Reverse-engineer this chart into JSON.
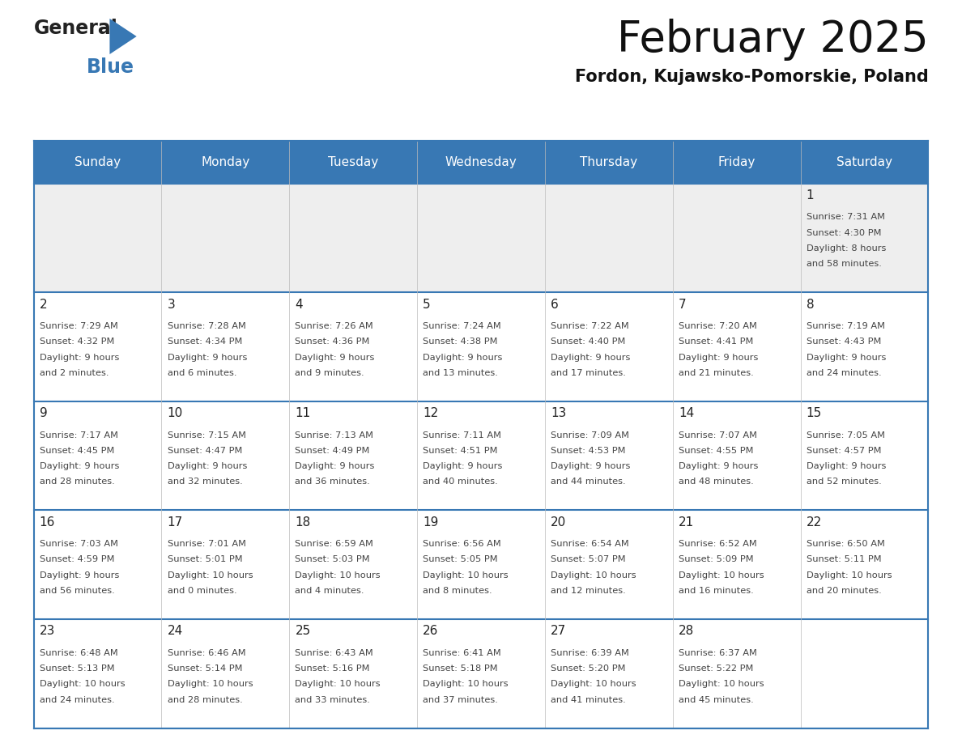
{
  "title": "February 2025",
  "subtitle": "Fordon, Kujawsko-Pomorskie, Poland",
  "header_color": "#3878b4",
  "header_text_color": "#ffffff",
  "days_of_week": [
    "Sunday",
    "Monday",
    "Tuesday",
    "Wednesday",
    "Thursday",
    "Friday",
    "Saturday"
  ],
  "cell_bg_row1": "#eeeeee",
  "cell_bg_normal": "#ffffff",
  "border_color": "#3878b4",
  "separator_color": "#3878b4",
  "text_color": "#444444",
  "day_num_color": "#222222",
  "logo_general_color": "#222222",
  "logo_blue_color": "#3878b4",
  "logo_triangle_color": "#3878b4",
  "calendar": [
    [
      null,
      null,
      null,
      null,
      null,
      null,
      {
        "day": 1,
        "sunrise": "7:31 AM",
        "sunset": "4:30 PM",
        "daylight": "8 hours",
        "daylight2": "and 58 minutes."
      }
    ],
    [
      {
        "day": 2,
        "sunrise": "7:29 AM",
        "sunset": "4:32 PM",
        "daylight": "9 hours",
        "daylight2": "and 2 minutes."
      },
      {
        "day": 3,
        "sunrise": "7:28 AM",
        "sunset": "4:34 PM",
        "daylight": "9 hours",
        "daylight2": "and 6 minutes."
      },
      {
        "day": 4,
        "sunrise": "7:26 AM",
        "sunset": "4:36 PM",
        "daylight": "9 hours",
        "daylight2": "and 9 minutes."
      },
      {
        "day": 5,
        "sunrise": "7:24 AM",
        "sunset": "4:38 PM",
        "daylight": "9 hours",
        "daylight2": "and 13 minutes."
      },
      {
        "day": 6,
        "sunrise": "7:22 AM",
        "sunset": "4:40 PM",
        "daylight": "9 hours",
        "daylight2": "and 17 minutes."
      },
      {
        "day": 7,
        "sunrise": "7:20 AM",
        "sunset": "4:41 PM",
        "daylight": "9 hours",
        "daylight2": "and 21 minutes."
      },
      {
        "day": 8,
        "sunrise": "7:19 AM",
        "sunset": "4:43 PM",
        "daylight": "9 hours",
        "daylight2": "and 24 minutes."
      }
    ],
    [
      {
        "day": 9,
        "sunrise": "7:17 AM",
        "sunset": "4:45 PM",
        "daylight": "9 hours",
        "daylight2": "and 28 minutes."
      },
      {
        "day": 10,
        "sunrise": "7:15 AM",
        "sunset": "4:47 PM",
        "daylight": "9 hours",
        "daylight2": "and 32 minutes."
      },
      {
        "day": 11,
        "sunrise": "7:13 AM",
        "sunset": "4:49 PM",
        "daylight": "9 hours",
        "daylight2": "and 36 minutes."
      },
      {
        "day": 12,
        "sunrise": "7:11 AM",
        "sunset": "4:51 PM",
        "daylight": "9 hours",
        "daylight2": "and 40 minutes."
      },
      {
        "day": 13,
        "sunrise": "7:09 AM",
        "sunset": "4:53 PM",
        "daylight": "9 hours",
        "daylight2": "and 44 minutes."
      },
      {
        "day": 14,
        "sunrise": "7:07 AM",
        "sunset": "4:55 PM",
        "daylight": "9 hours",
        "daylight2": "and 48 minutes."
      },
      {
        "day": 15,
        "sunrise": "7:05 AM",
        "sunset": "4:57 PM",
        "daylight": "9 hours",
        "daylight2": "and 52 minutes."
      }
    ],
    [
      {
        "day": 16,
        "sunrise": "7:03 AM",
        "sunset": "4:59 PM",
        "daylight": "9 hours",
        "daylight2": "and 56 minutes."
      },
      {
        "day": 17,
        "sunrise": "7:01 AM",
        "sunset": "5:01 PM",
        "daylight": "10 hours",
        "daylight2": "and 0 minutes."
      },
      {
        "day": 18,
        "sunrise": "6:59 AM",
        "sunset": "5:03 PM",
        "daylight": "10 hours",
        "daylight2": "and 4 minutes."
      },
      {
        "day": 19,
        "sunrise": "6:56 AM",
        "sunset": "5:05 PM",
        "daylight": "10 hours",
        "daylight2": "and 8 minutes."
      },
      {
        "day": 20,
        "sunrise": "6:54 AM",
        "sunset": "5:07 PM",
        "daylight": "10 hours",
        "daylight2": "and 12 minutes."
      },
      {
        "day": 21,
        "sunrise": "6:52 AM",
        "sunset": "5:09 PM",
        "daylight": "10 hours",
        "daylight2": "and 16 minutes."
      },
      {
        "day": 22,
        "sunrise": "6:50 AM",
        "sunset": "5:11 PM",
        "daylight": "10 hours",
        "daylight2": "and 20 minutes."
      }
    ],
    [
      {
        "day": 23,
        "sunrise": "6:48 AM",
        "sunset": "5:13 PM",
        "daylight": "10 hours",
        "daylight2": "and 24 minutes."
      },
      {
        "day": 24,
        "sunrise": "6:46 AM",
        "sunset": "5:14 PM",
        "daylight": "10 hours",
        "daylight2": "and 28 minutes."
      },
      {
        "day": 25,
        "sunrise": "6:43 AM",
        "sunset": "5:16 PM",
        "daylight": "10 hours",
        "daylight2": "and 33 minutes."
      },
      {
        "day": 26,
        "sunrise": "6:41 AM",
        "sunset": "5:18 PM",
        "daylight": "10 hours",
        "daylight2": "and 37 minutes."
      },
      {
        "day": 27,
        "sunrise": "6:39 AM",
        "sunset": "5:20 PM",
        "daylight": "10 hours",
        "daylight2": "and 41 minutes."
      },
      {
        "day": 28,
        "sunrise": "6:37 AM",
        "sunset": "5:22 PM",
        "daylight": "10 hours",
        "daylight2": "and 45 minutes."
      },
      null
    ]
  ]
}
